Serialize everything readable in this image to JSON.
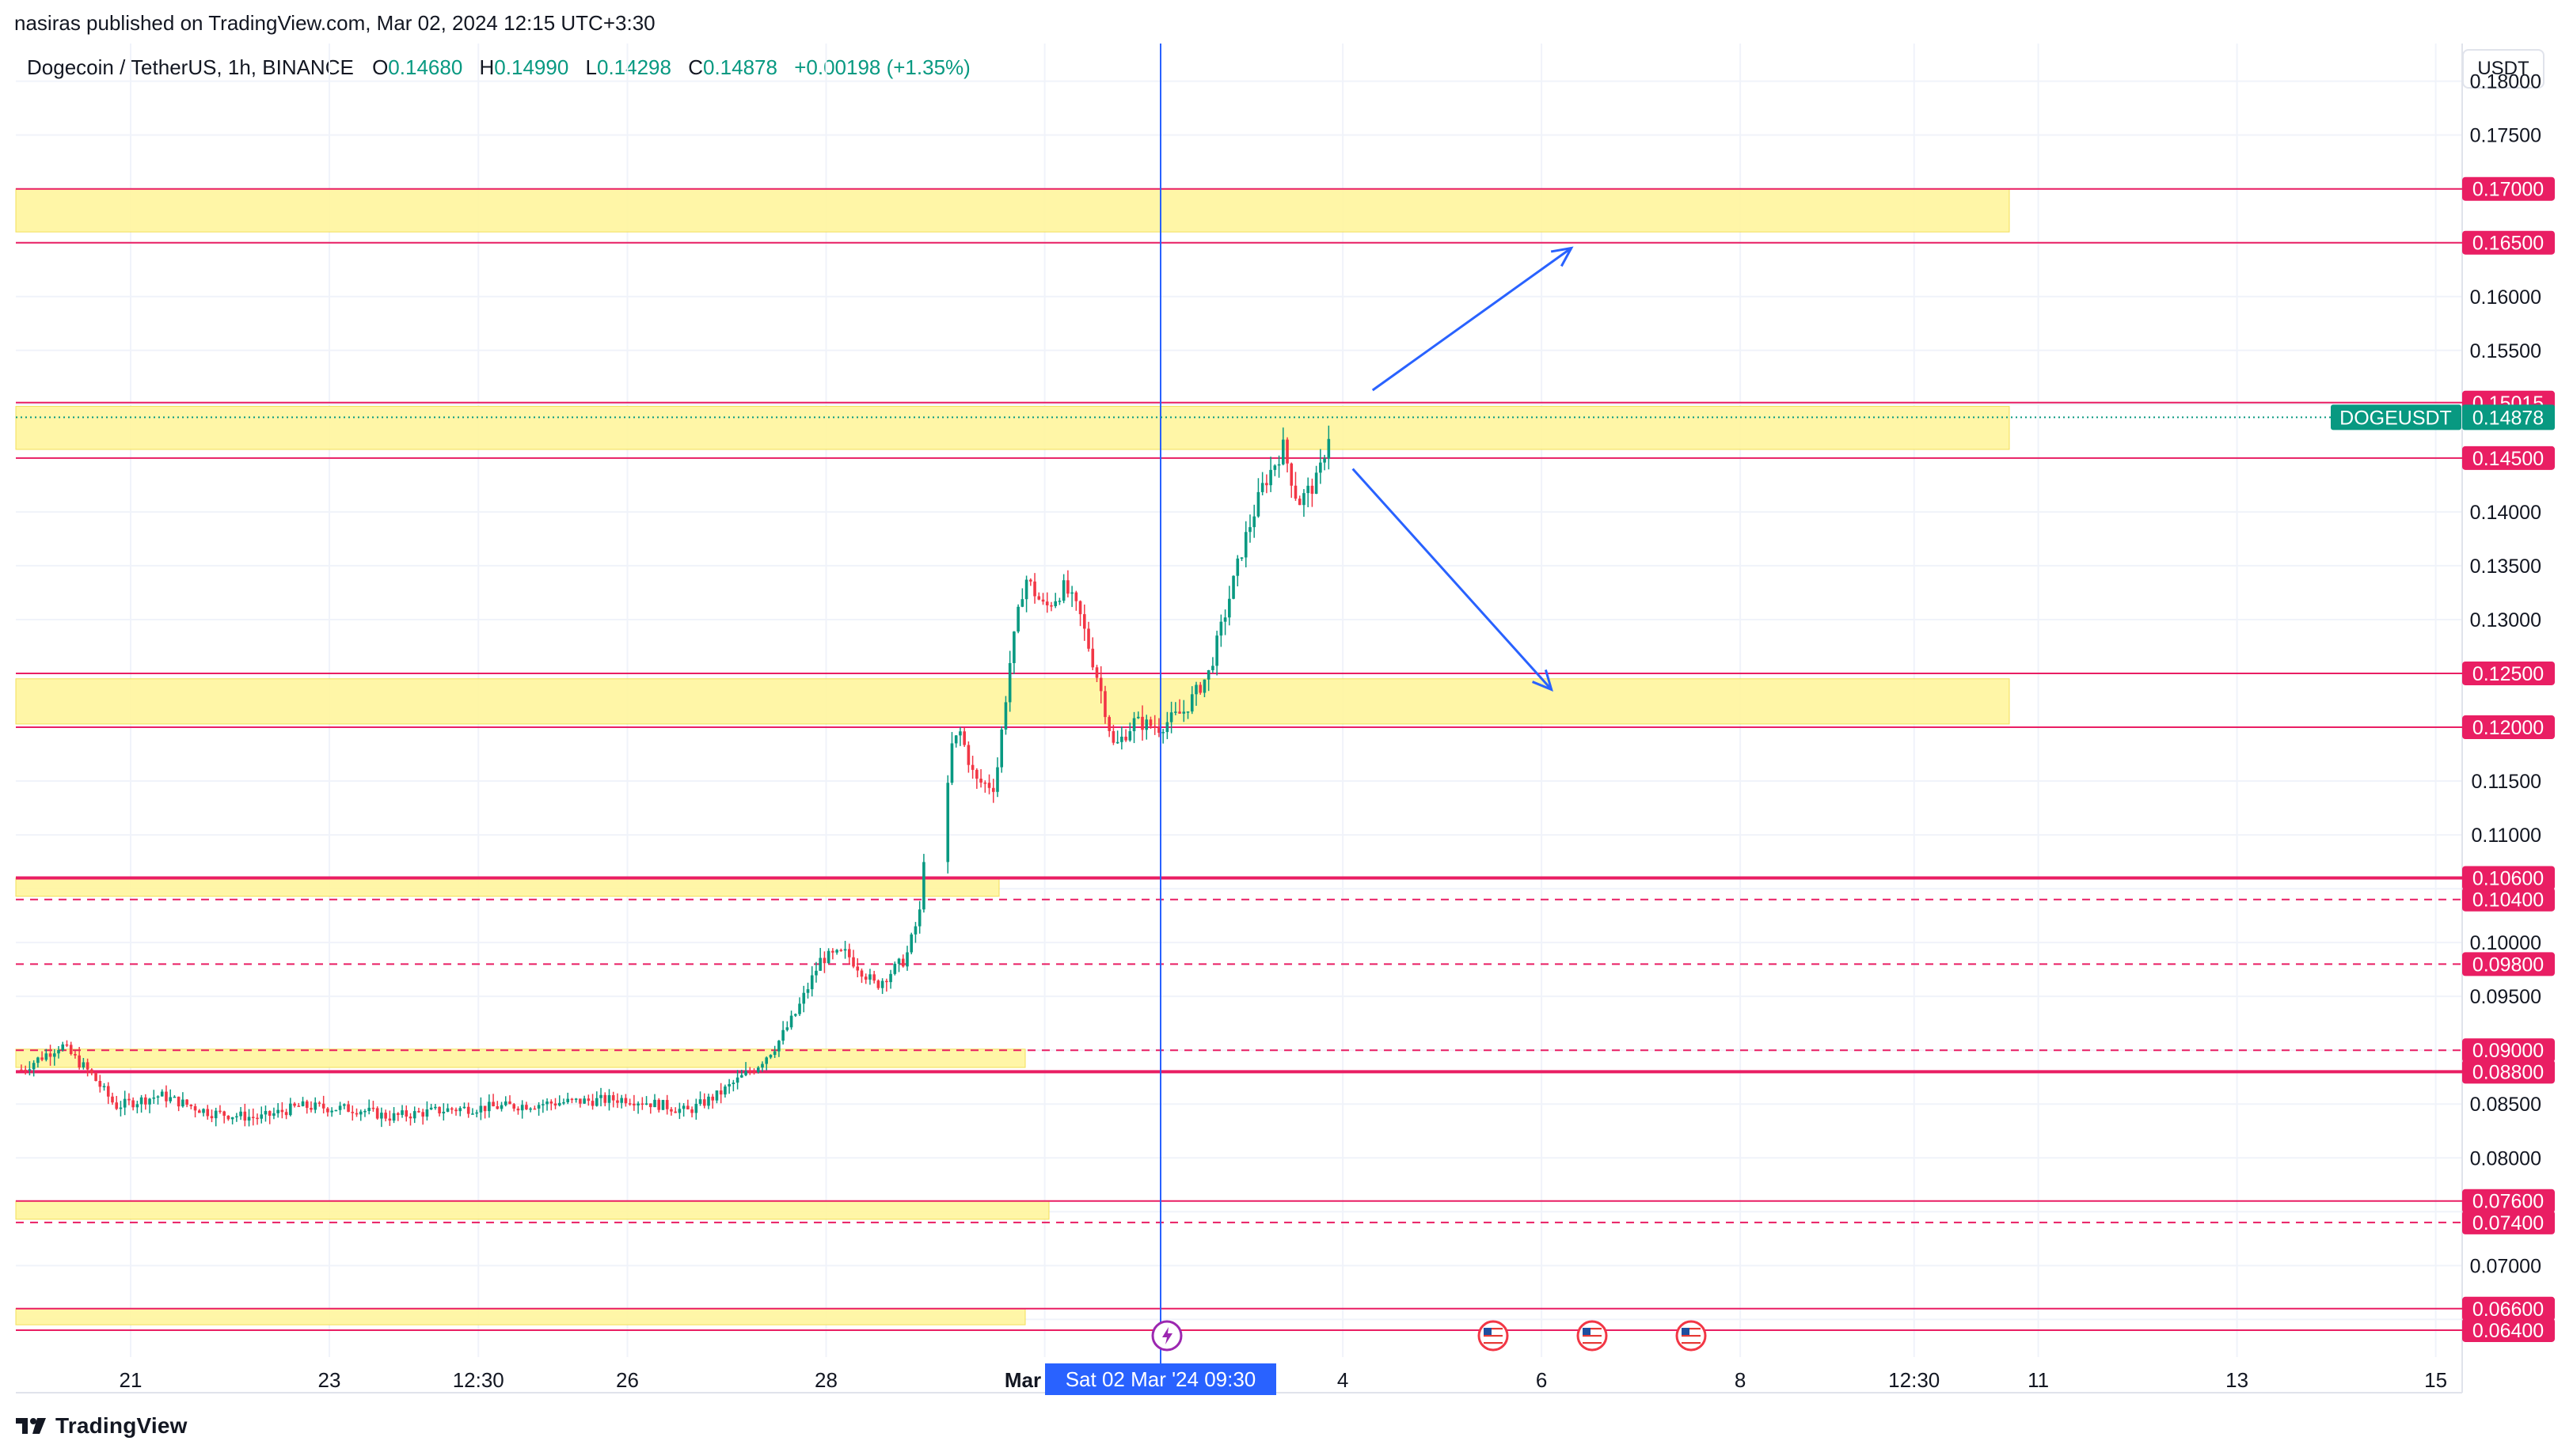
{
  "header": {
    "published": "nasiras published on TradingView.com, Mar 02, 2024 12:15 UTC+3:30"
  },
  "legend": {
    "symbol": "Dogecoin / TetherUS, 1h, BINANCE",
    "open_label": "O",
    "open": "0.14680",
    "high_label": "H",
    "high": "0.14990",
    "low_label": "L",
    "low": "0.14298",
    "close_label": "C",
    "close": "0.14878",
    "change": "+0.00198 (+1.35%)"
  },
  "currency_button": "USDT",
  "brand": {
    "name": "TradingView"
  },
  "colors": {
    "up": "#089981",
    "down": "#f23645",
    "level_line": "#e91e63",
    "zone_fill": "#fff59d",
    "crosshair": "#2962ff",
    "arrow": "#2962ff"
  },
  "chart_data": {
    "type": "candlestick",
    "ylim": [
      0.0615,
      0.1835
    ],
    "y_ticks": [
      "0.18000",
      "0.17500",
      "0.16000",
      "0.15500",
      "0.14000",
      "0.13500",
      "0.13000",
      "0.11500",
      "0.11000",
      "0.10000",
      "0.09500",
      "0.08500",
      "0.08000",
      "0.07000"
    ],
    "x_ticks": [
      "21",
      "23",
      "12:30",
      "26",
      "28",
      "Mar",
      "4",
      "6",
      "8",
      "12:30",
      "11",
      "13",
      "15"
    ],
    "crosshair_label": "Sat 02 Mar '24   09:30",
    "last_price": {
      "label": "DOGEUSDT",
      "value": 0.14878
    },
    "levels": [
      {
        "value": 0.17,
        "style": "solid"
      },
      {
        "value": 0.165,
        "style": "solid"
      },
      {
        "value": 0.15015,
        "style": "solid"
      },
      {
        "value": 0.145,
        "style": "solid"
      },
      {
        "value": 0.125,
        "style": "solid"
      },
      {
        "value": 0.12,
        "style": "solid"
      },
      {
        "value": 0.106,
        "style": "solid-thick"
      },
      {
        "value": 0.104,
        "style": "dashed"
      },
      {
        "value": 0.098,
        "style": "dashed"
      },
      {
        "value": 0.09,
        "style": "dashed"
      },
      {
        "value": 0.088,
        "style": "solid-thick"
      },
      {
        "value": 0.076,
        "style": "solid"
      },
      {
        "value": 0.074,
        "style": "dashed"
      },
      {
        "value": 0.066,
        "style": "solid"
      },
      {
        "value": 0.064,
        "style": "solid"
      }
    ],
    "zones": [
      {
        "top": 0.17,
        "bottom": 0.166,
        "end": "11"
      },
      {
        "top": 0.1498,
        "bottom": 0.1458,
        "end": "11"
      },
      {
        "top": 0.1245,
        "bottom": 0.1203,
        "end": "11"
      },
      {
        "top": 0.106,
        "bottom": 0.1043,
        "end": "29"
      },
      {
        "top": 0.0901,
        "bottom": 0.0884,
        "end": "Mar"
      },
      {
        "top": 0.076,
        "bottom": 0.0743,
        "end": "Mar"
      },
      {
        "top": 0.066,
        "bottom": 0.0645,
        "end": "Mar"
      }
    ],
    "price_path": [
      [
        19.9,
        0.0882
      ],
      [
        20.3,
        0.0905
      ],
      [
        20.6,
        0.0878
      ],
      [
        20.85,
        0.0848
      ],
      [
        21.3,
        0.0858
      ],
      [
        21.8,
        0.0842
      ],
      [
        22.3,
        0.0837
      ],
      [
        22.7,
        0.0848
      ],
      [
        23.3,
        0.0845
      ],
      [
        23.6,
        0.0838
      ],
      [
        24.2,
        0.0845
      ],
      [
        24.8,
        0.0848
      ],
      [
        25.4,
        0.0852
      ],
      [
        26.0,
        0.0855
      ],
      [
        26.4,
        0.0848
      ],
      [
        26.6,
        0.0843
      ],
      [
        26.9,
        0.0858
      ],
      [
        27.3,
        0.0885
      ],
      [
        27.5,
        0.0905
      ],
      [
        27.7,
        0.0935
      ],
      [
        27.95,
        0.0985
      ],
      [
        28.2,
        0.099
      ],
      [
        28.5,
        0.096
      ],
      [
        28.8,
        0.0985
      ],
      [
        28.95,
        0.103
      ],
      [
        29.05,
        0.118
      ],
      [
        29.15,
        0.1195
      ],
      [
        29.3,
        0.115
      ],
      [
        29.5,
        0.1145
      ],
      [
        29.65,
        0.126
      ],
      [
        29.8,
        0.134
      ],
      [
        30.0,
        0.131
      ],
      [
        30.2,
        0.133
      ],
      [
        30.35,
        0.1305
      ],
      [
        30.55,
        0.124
      ],
      [
        30.7,
        0.118
      ],
      [
        30.9,
        0.1205
      ],
      [
        31.15,
        0.12
      ],
      [
        31.4,
        0.1215
      ],
      [
        31.65,
        0.125
      ],
      [
        31.8,
        0.13
      ],
      [
        32.0,
        0.137
      ],
      [
        32.2,
        0.1425
      ],
      [
        32.4,
        0.146
      ],
      [
        32.55,
        0.1408
      ],
      [
        32.75,
        0.143
      ],
      [
        32.9,
        0.1488
      ]
    ],
    "annotations": [
      {
        "type": "arrow",
        "from": [
          33.3,
          0.1513
        ],
        "to": [
          35.3,
          0.1645
        ]
      },
      {
        "type": "arrow",
        "from": [
          33.1,
          0.144
        ],
        "to": [
          35.1,
          0.1235
        ]
      }
    ],
    "events": [
      "lightning",
      "us-flag",
      "us-flag",
      "us-flag"
    ]
  }
}
